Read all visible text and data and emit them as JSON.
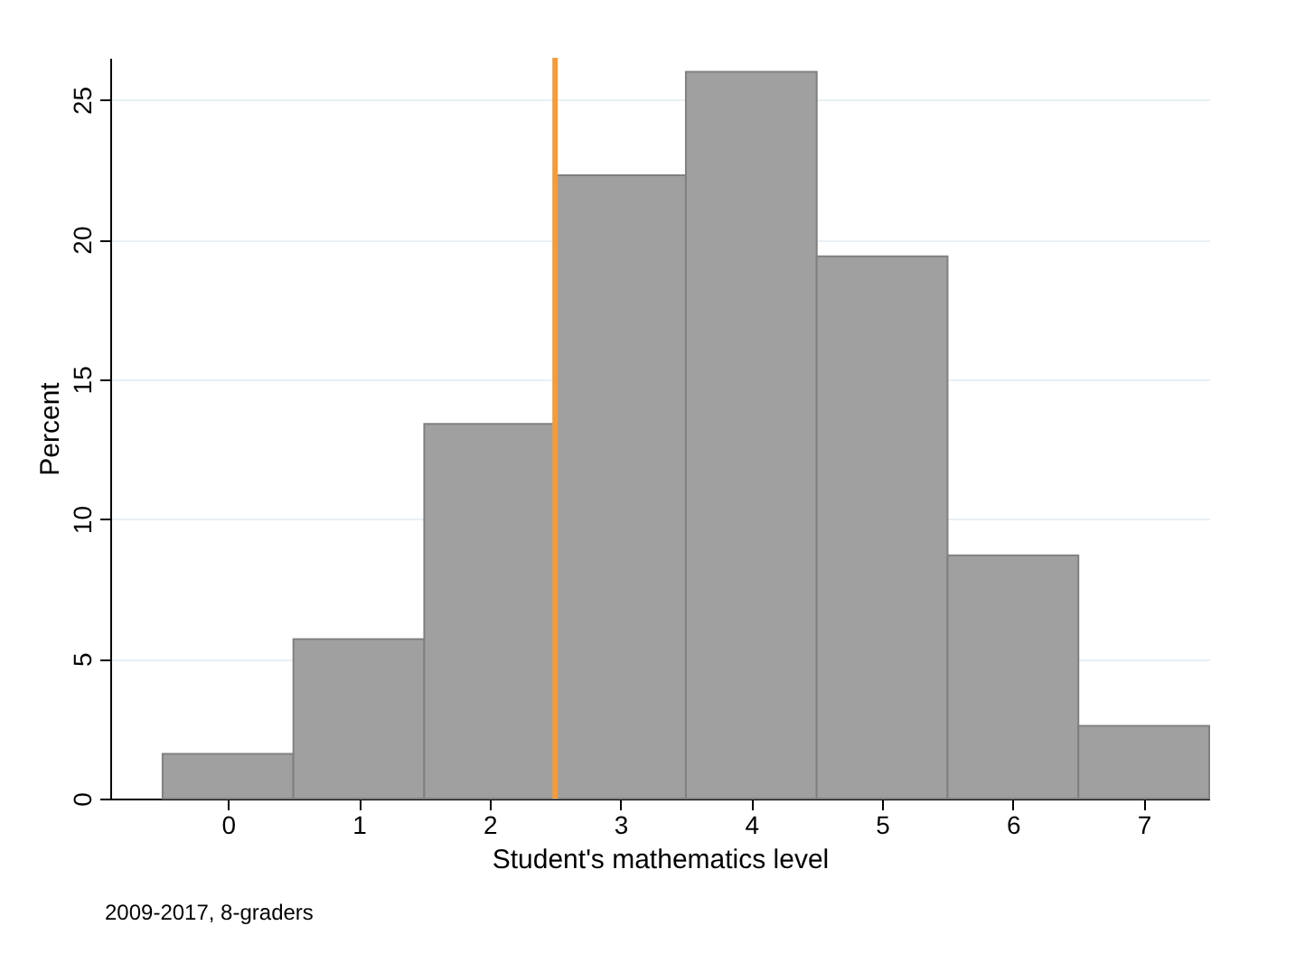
{
  "chart_data": {
    "type": "histogram",
    "xlabel": "Student's mathematics level",
    "ylabel": "Percent",
    "bins": [
      -0.5,
      0.5,
      1.5,
      2.5,
      3.5,
      4.5,
      5.5,
      6.5,
      7.5
    ],
    "values": [
      1.6,
      5.7,
      13.4,
      22.3,
      26.0,
      19.4,
      8.7,
      2.6
    ],
    "color": "#a0a0a0",
    "xlim": [
      -0.9,
      7.5
    ],
    "xticks": [
      0,
      1,
      2,
      3,
      4,
      5,
      6,
      7
    ],
    "ylim": [
      0,
      26.5
    ],
    "yticks": [
      0,
      5,
      10,
      15,
      20,
      25
    ],
    "grid": "y",
    "ref_lines": [
      {
        "axis": "x",
        "value": 2.5,
        "color": "#f39c3c"
      }
    ],
    "annotations": [
      "2009-2017, 8-graders"
    ]
  }
}
